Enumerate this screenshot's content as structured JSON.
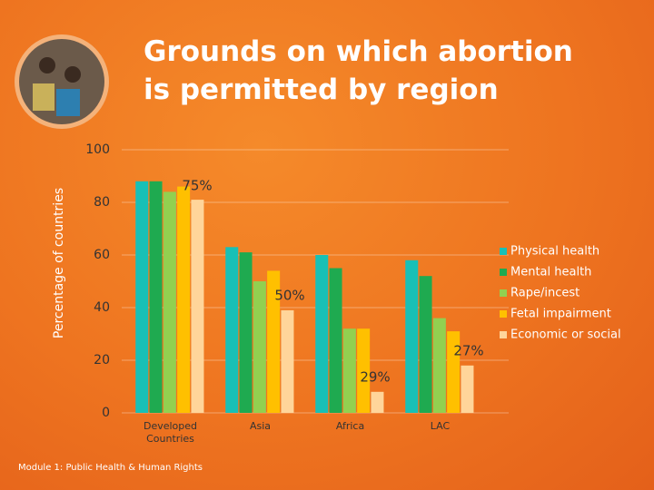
{
  "chart_data": {
    "type": "bar",
    "title": "Grounds on which abortion is permitted by region",
    "y_label": "Percentage of countries",
    "categories": [
      "Developed Countries",
      "Asia",
      "Africa",
      "LAC"
    ],
    "series": [
      {
        "name": "Physical health",
        "color": "#18c0b6",
        "values": [
          88,
          63,
          60,
          58
        ]
      },
      {
        "name": "Mental health",
        "color": "#1faa50",
        "values": [
          88,
          61,
          55,
          52
        ]
      },
      {
        "name": "Rape/incest",
        "color": "#92d050",
        "values": [
          84,
          50,
          32,
          36
        ]
      },
      {
        "name": "Fetal impairment",
        "color": "#ffc000",
        "values": [
          86,
          54,
          32,
          31
        ]
      },
      {
        "name": "Economic or social",
        "color": "#ffd59a",
        "values": [
          81,
          39,
          8,
          18
        ]
      }
    ],
    "annotations": [
      "75%",
      "50%",
      "29%",
      "27%"
    ],
    "ylim": [
      0,
      100
    ],
    "yticks": [
      0,
      20,
      40,
      60,
      80,
      100
    ],
    "grid": true,
    "legend": "right",
    "footer": "Module 1: Public Health & Human Rights"
  }
}
